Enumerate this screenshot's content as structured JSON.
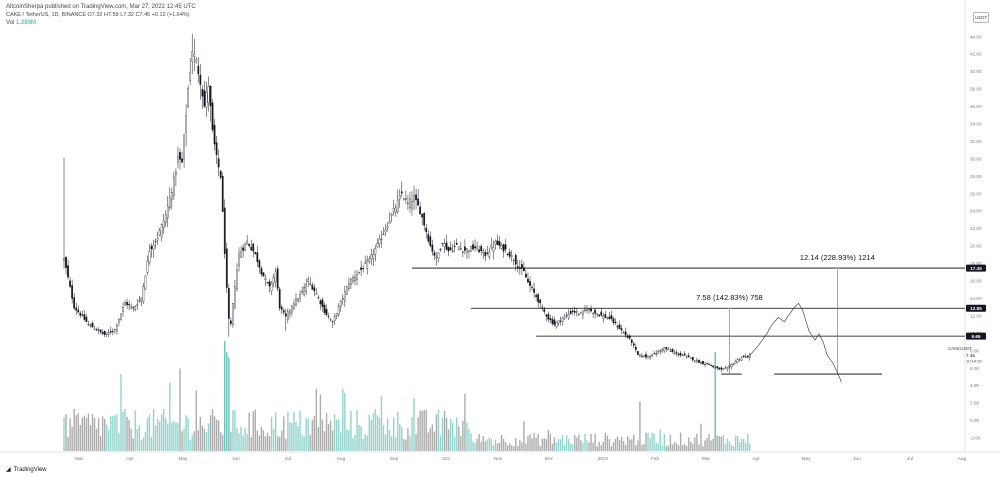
{
  "header": {
    "publisher": "AltcoinSherpa published on TradingView.com, Mar 27, 2022 12:45 UTC",
    "symbol_line": "CAKE / TetherUS, 1D, BINANCE  O7.32  H7.59  L7.32  C7.45  +0.12 (+1.64%)",
    "vol_label": "Vol",
    "vol_value": "1.289M"
  },
  "currency_badge": "USDT",
  "footer_logo": "TradingView",
  "colors": {
    "candle": "#131722",
    "volume_up": "#80cbc4",
    "volume_down": "#9e9e9e",
    "volume_spike": "#4db6ac",
    "line": "#000000"
  },
  "chart_data": {
    "type": "candlestick",
    "yaxis": {
      "ticks": [
        "44.00",
        "42.00",
        "40.00",
        "38.00",
        "36.00",
        "34.00",
        "32.00",
        "30.00",
        "28.00",
        "26.00",
        "24.00",
        "22.00",
        "20.00",
        "18.00",
        "16.00",
        "14.00",
        "12.00",
        "10.00",
        "8.00",
        "6.00",
        "4.00",
        "2.00",
        "0.00",
        "-2.00"
      ],
      "range": [
        -2.6,
        45.2
      ]
    },
    "xaxis": {
      "labels": [
        "Mar",
        "Apr",
        "May",
        "Jun",
        "Jul",
        "Aug",
        "Sep",
        "Oct",
        "Nov",
        "Dec",
        "2022",
        "Feb",
        "Mar",
        "Apr",
        "May",
        "Jun",
        "Jul",
        "Aug"
      ]
    },
    "price_badges": [
      {
        "value": 17.45,
        "label": "17.45"
      },
      {
        "value": 12.85,
        "label": "12.85"
      },
      {
        "value": 9.65,
        "label": "9.65"
      }
    ],
    "current_price": {
      "symbol": "CAKEUSDT",
      "price": "7.45",
      "countdown": "10:14:39"
    },
    "price_anchors": [
      [
        0,
        18.5
      ],
      [
        5,
        13.0
      ],
      [
        12,
        11.0
      ],
      [
        20,
        9.8
      ],
      [
        25,
        10.4
      ],
      [
        30,
        13.5
      ],
      [
        34,
        12.8
      ],
      [
        38,
        14.0
      ],
      [
        42,
        19.5
      ],
      [
        46,
        21.0
      ],
      [
        50,
        23.5
      ],
      [
        54,
        27.5
      ],
      [
        56,
        30.0
      ],
      [
        58,
        29.5
      ],
      [
        61,
        38.0
      ],
      [
        63,
        42.5
      ],
      [
        65,
        41.0
      ],
      [
        67,
        39.0
      ],
      [
        69,
        36.0
      ],
      [
        71,
        38.5
      ],
      [
        73,
        33.0
      ],
      [
        75,
        30.0
      ],
      [
        77,
        28.0
      ],
      [
        80,
        15.0
      ],
      [
        81,
        11.5
      ],
      [
        82,
        11.0
      ],
      [
        84,
        15.5
      ],
      [
        86,
        19.0
      ],
      [
        90,
        20.5
      ],
      [
        94,
        19.0
      ],
      [
        97,
        17.0
      ],
      [
        101,
        15.2
      ],
      [
        104,
        17.0
      ],
      [
        106,
        13.0
      ],
      [
        109,
        11.8
      ],
      [
        112,
        13.2
      ],
      [
        116,
        14.3
      ],
      [
        120,
        16.0
      ],
      [
        124,
        14.5
      ],
      [
        128,
        12.5
      ],
      [
        132,
        11.2
      ],
      [
        136,
        13.5
      ],
      [
        140,
        15.8
      ],
      [
        145,
        17.0
      ],
      [
        150,
        18.3
      ],
      [
        155,
        20.5
      ],
      [
        160,
        23.0
      ],
      [
        164,
        25.0
      ],
      [
        166,
        26.0
      ],
      [
        169,
        24.8
      ],
      [
        172,
        25.5
      ],
      [
        175,
        24.0
      ],
      [
        177,
        22.5
      ],
      [
        180,
        20.0
      ],
      [
        183,
        18.5
      ],
      [
        186,
        20.5
      ],
      [
        189,
        19.4
      ],
      [
        193,
        20.0
      ],
      [
        197,
        19.5
      ],
      [
        202,
        19.8
      ],
      [
        207,
        19.0
      ],
      [
        212,
        20.3
      ],
      [
        217,
        19.5
      ],
      [
        221,
        18.5
      ],
      [
        224,
        17.4
      ],
      [
        226,
        17.0
      ],
      [
        228,
        15.8
      ],
      [
        232,
        14.2
      ],
      [
        235,
        12.8
      ],
      [
        238,
        11.7
      ],
      [
        241,
        11.0
      ],
      [
        245,
        11.7
      ],
      [
        250,
        12.5
      ],
      [
        254,
        12.2
      ],
      [
        257,
        12.8
      ],
      [
        260,
        12.4
      ],
      [
        264,
        12.0
      ],
      [
        268,
        11.7
      ],
      [
        272,
        10.8
      ],
      [
        276,
        9.8
      ],
      [
        279,
        9.0
      ],
      [
        282,
        7.5
      ],
      [
        286,
        7.3
      ],
      [
        290,
        7.6
      ],
      [
        295,
        8.3
      ],
      [
        300,
        7.7
      ],
      [
        305,
        7.4
      ],
      [
        309,
        7.0
      ],
      [
        313,
        6.6
      ],
      [
        317,
        6.4
      ],
      [
        320,
        6.0
      ],
      [
        323,
        5.8
      ],
      [
        326,
        6.0
      ],
      [
        329,
        6.6
      ],
      [
        333,
        7.2
      ],
      [
        336,
        7.3
      ],
      [
        337,
        7.45
      ]
    ],
    "wick_extremes": [
      {
        "index": 0,
        "high": 30.1
      },
      {
        "index": 63,
        "high": 44.3
      },
      {
        "index": 81,
        "low": 9.6
      },
      {
        "index": 109,
        "low": 10.2
      },
      {
        "index": 132,
        "low": 10.6
      },
      {
        "index": 323,
        "low": 5.5
      }
    ],
    "volume_axis_ticks": [
      "4.00",
      "2.00",
      "0.00",
      "-2.00"
    ],
    "volume_spikes": [
      {
        "index": 79,
        "rel": 1.0
      },
      {
        "index": 80,
        "rel": 0.9
      },
      {
        "index": 81,
        "rel": 0.85
      },
      {
        "index": 57,
        "rel": 0.75
      },
      {
        "index": 28,
        "rel": 0.7
      },
      {
        "index": 52,
        "rel": 0.62
      },
      {
        "index": 65,
        "rel": 0.55
      },
      {
        "index": 156,
        "rel": 0.5
      },
      {
        "index": 320,
        "rel": 0.9
      },
      {
        "index": 283,
        "rel": 0.45
      }
    ],
    "horizontal_levels": [
      {
        "from_index": 232,
        "value": 9.65
      },
      {
        "from_index": 200,
        "value": 12.85
      },
      {
        "from_index": 171,
        "value": 17.45
      }
    ],
    "measurements": [
      {
        "label": "7.58 (142.83%) 758",
        "x_index": 327,
        "from": 5.3,
        "to": 12.85
      },
      {
        "label": "12.14 (228.93%) 1214",
        "x_index": 380,
        "from": 5.3,
        "to": 17.45
      }
    ],
    "target_zones": [
      {
        "from_index": 323,
        "to_index": 333,
        "value": 5.3
      },
      {
        "from_index": 349,
        "to_index": 402,
        "value": 5.3
      }
    ],
    "projection_path": [
      [
        337,
        7.45
      ],
      [
        341,
        8.5
      ],
      [
        345,
        9.8
      ],
      [
        348,
        11.0
      ],
      [
        351,
        11.8
      ],
      [
        354,
        11.3
      ],
      [
        356,
        12.0
      ],
      [
        359,
        13.0
      ],
      [
        361,
        13.4
      ],
      [
        363,
        12.6
      ],
      [
        366,
        10.3
      ],
      [
        369,
        9.2
      ],
      [
        371,
        9.9
      ],
      [
        373,
        9.0
      ],
      [
        375,
        7.5
      ],
      [
        378,
        6.5
      ],
      [
        380,
        5.5
      ],
      [
        382,
        4.4
      ]
    ]
  }
}
